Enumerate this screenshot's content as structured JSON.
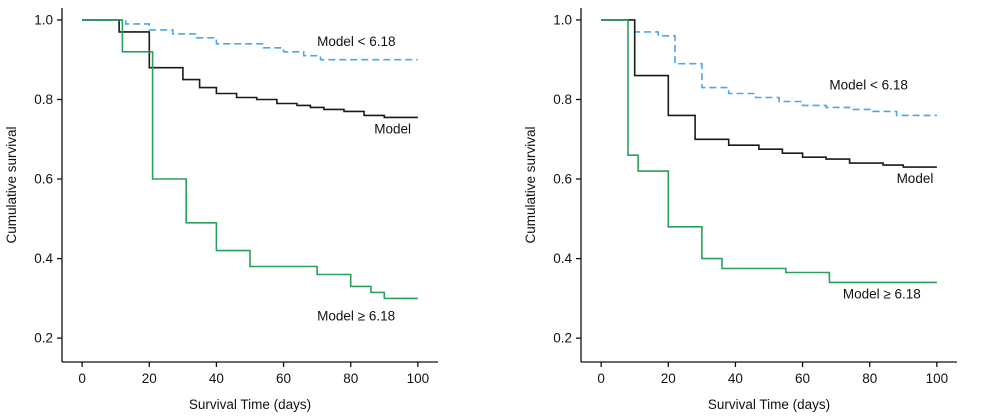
{
  "figure": {
    "background": "#ffffff",
    "axis_color": "#111111",
    "description": "Two Kaplan-Meier cumulative survival step plots"
  },
  "chart_data": [
    {
      "type": "line",
      "subtype": "kaplan-meier-step",
      "title": "",
      "xlabel": "Survival Time (days)",
      "ylabel": "Cumulative survival",
      "x_ticks": [
        0,
        20,
        40,
        60,
        80,
        100
      ],
      "y_ticks": [
        1.0,
        0.8,
        0.6,
        0.4,
        0.2
      ],
      "x_domain": [
        -6,
        106
      ],
      "y_domain": [
        0.14,
        1.03
      ],
      "end_x": 100,
      "grid": false,
      "series": [
        {
          "name": "Model < 6.18",
          "color": "#49a8e8",
          "dash": "7,4",
          "width": 1.6,
          "steps": [
            [
              0,
              1.0
            ],
            [
              13,
              0.99
            ],
            [
              20,
              0.975
            ],
            [
              27,
              0.965
            ],
            [
              34,
              0.955
            ],
            [
              40,
              0.94
            ],
            [
              54,
              0.93
            ],
            [
              60,
              0.92
            ],
            [
              66,
              0.91
            ],
            [
              71,
              0.9
            ]
          ]
        },
        {
          "name": "Model",
          "color": "#1a1a1a",
          "dash": "",
          "width": 1.6,
          "steps": [
            [
              0,
              1.0
            ],
            [
              11,
              0.97
            ],
            [
              20,
              0.88
            ],
            [
              30,
              0.85
            ],
            [
              35,
              0.83
            ],
            [
              40,
              0.815
            ],
            [
              46,
              0.805
            ],
            [
              52,
              0.8
            ],
            [
              58,
              0.79
            ],
            [
              64,
              0.785
            ],
            [
              68,
              0.78
            ],
            [
              72,
              0.775
            ],
            [
              78,
              0.77
            ],
            [
              84,
              0.76
            ],
            [
              90,
              0.755
            ]
          ]
        },
        {
          "name": "Model ≥ 6.18",
          "color": "#2aa05c",
          "dash": "",
          "width": 1.6,
          "steps": [
            [
              0,
              1.0
            ],
            [
              12,
              0.92
            ],
            [
              21,
              0.6
            ],
            [
              31,
              0.49
            ],
            [
              40,
              0.42
            ],
            [
              50,
              0.38
            ],
            [
              70,
              0.36
            ],
            [
              80,
              0.33
            ],
            [
              86,
              0.315
            ],
            [
              90,
              0.3
            ]
          ]
        }
      ],
      "annotations": [
        {
          "text": "Model < 6.18",
          "x": 70,
          "y": 0.945
        },
        {
          "text": "Model",
          "x": 87,
          "y": 0.725
        },
        {
          "text": "Model ≥ 6.18",
          "x": 70,
          "y": 0.255
        }
      ]
    },
    {
      "type": "line",
      "subtype": "kaplan-meier-step",
      "title": "",
      "xlabel": "Survival Time (days)",
      "ylabel": "Cumulative survival",
      "x_ticks": [
        0,
        20,
        40,
        60,
        80,
        100
      ],
      "y_ticks": [
        1.0,
        0.8,
        0.6,
        0.4,
        0.2
      ],
      "x_domain": [
        -6,
        106
      ],
      "y_domain": [
        0.14,
        1.03
      ],
      "end_x": 100,
      "grid": false,
      "series": [
        {
          "name": "Model < 6.18",
          "color": "#49a8e8",
          "dash": "7,4",
          "width": 1.6,
          "steps": [
            [
              0,
              1.0
            ],
            [
              10,
              0.97
            ],
            [
              17,
              0.96
            ],
            [
              22,
              0.89
            ],
            [
              30,
              0.83
            ],
            [
              38,
              0.815
            ],
            [
              46,
              0.805
            ],
            [
              53,
              0.795
            ],
            [
              60,
              0.785
            ],
            [
              67,
              0.78
            ],
            [
              74,
              0.775
            ],
            [
              81,
              0.77
            ],
            [
              88,
              0.76
            ]
          ]
        },
        {
          "name": "Model",
          "color": "#1a1a1a",
          "dash": "",
          "width": 1.6,
          "steps": [
            [
              0,
              1.0
            ],
            [
              10,
              0.86
            ],
            [
              20,
              0.76
            ],
            [
              28,
              0.7
            ],
            [
              38,
              0.685
            ],
            [
              47,
              0.675
            ],
            [
              54,
              0.665
            ],
            [
              60,
              0.655
            ],
            [
              67,
              0.65
            ],
            [
              74,
              0.64
            ],
            [
              84,
              0.635
            ],
            [
              90,
              0.63
            ]
          ]
        },
        {
          "name": "Model ≥ 6.18",
          "color": "#2aa05c",
          "dash": "",
          "width": 1.6,
          "steps": [
            [
              0,
              1.0
            ],
            [
              8,
              0.66
            ],
            [
              11,
              0.62
            ],
            [
              20,
              0.48
            ],
            [
              30,
              0.4
            ],
            [
              36,
              0.375
            ],
            [
              55,
              0.365
            ],
            [
              68,
              0.34
            ]
          ]
        }
      ],
      "annotations": [
        {
          "text": "Model < 6.18",
          "x": 68,
          "y": 0.835
        },
        {
          "text": "Model",
          "x": 88,
          "y": 0.6
        },
        {
          "text": "Model ≥ 6.18",
          "x": 72,
          "y": 0.31
        }
      ]
    }
  ]
}
